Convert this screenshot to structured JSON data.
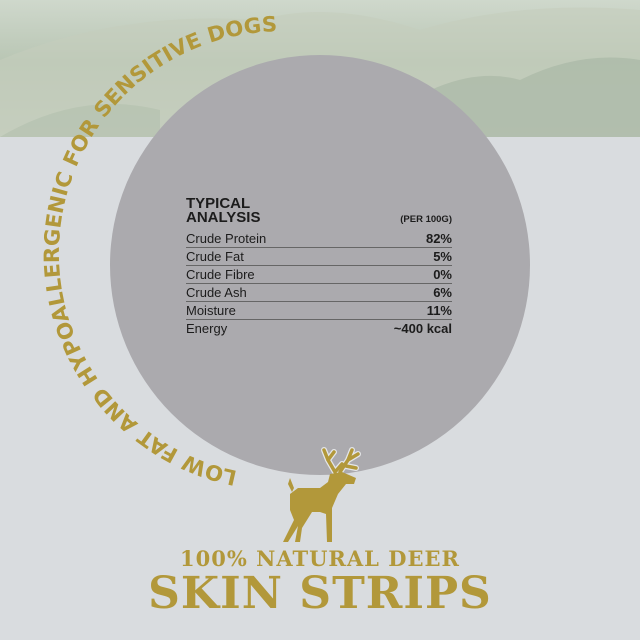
{
  "arc_text": "LOW FAT AND HYPOALLERGENIC FOR SENSITIVE DOGS",
  "analysis": {
    "title_line1": "TYPICAL",
    "title_line2": "ANALYSIS",
    "per": "(PER 100G)",
    "rows": [
      {
        "label": "Crude Protein",
        "value": "82%"
      },
      {
        "label": "Crude Fat",
        "value": "5%"
      },
      {
        "label": "Crude Fibre",
        "value": "0%"
      },
      {
        "label": "Crude Ash",
        "value": "6%"
      },
      {
        "label": "Moisture",
        "value": "11%"
      },
      {
        "label": "Energy",
        "value": "~400 kcal"
      }
    ]
  },
  "product": {
    "subtitle": "100% NATURAL DEER",
    "name": "SKIN STRIPS"
  },
  "icons": {
    "deer": "deer-icon"
  },
  "colors": {
    "gold": "#b2983a",
    "circle": "#abaaae",
    "background": "#d9dcdf"
  }
}
